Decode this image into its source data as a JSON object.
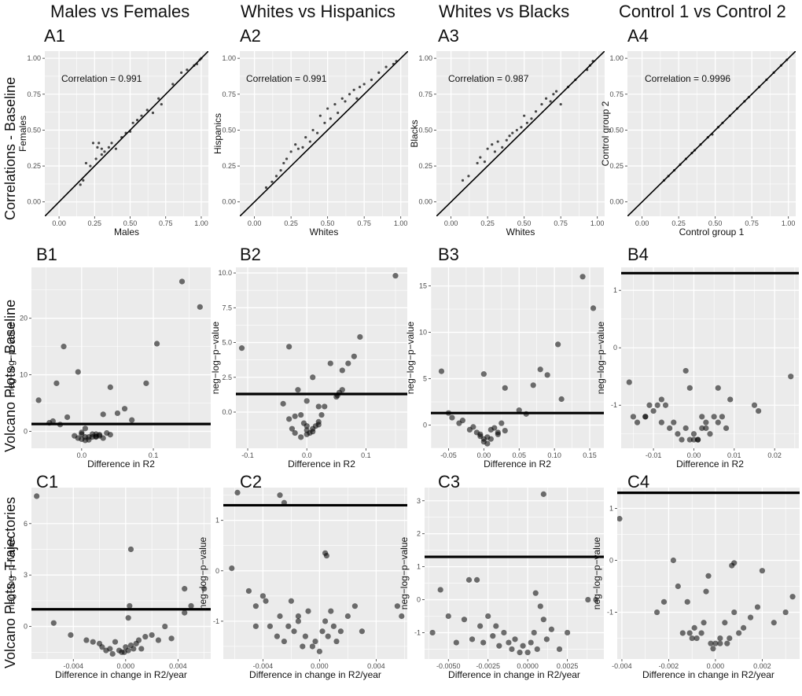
{
  "column_titles": [
    "Males vs Females",
    "Whites vs Hispanics",
    "Whites vs Blacks",
    "Control 1 vs Control 2"
  ],
  "row_titles": [
    "Correlations - Baseline",
    "Volcano Plots - Baseline",
    "Volcano Plots - Trajectories"
  ],
  "panel_labels": {
    "A": [
      "A1",
      "A2",
      "A3",
      "A4"
    ],
    "B": [
      "B1",
      "B2",
      "B3",
      "B4"
    ],
    "C": [
      "C1",
      "C2",
      "C3",
      "C4"
    ]
  },
  "chart_data": [
    {
      "id": "A1",
      "type": "scatter",
      "xlabel": "Males",
      "ylabel": "Females",
      "annotation": "Correlation = 0.991",
      "xlim": [
        -0.1,
        1.05
      ],
      "ylim": [
        -0.1,
        1.05
      ],
      "xticks": [
        0,
        0.25,
        0.5,
        0.75,
        1
      ],
      "xtick_labels": [
        "0.00",
        "0.25",
        "0.50",
        "0.75",
        "1.00"
      ],
      "yticks": [
        0,
        0.25,
        0.5,
        0.75,
        1
      ],
      "ytick_labels": [
        "0.00",
        "0.25",
        "0.50",
        "0.75",
        "1.00"
      ],
      "diagonal": true,
      "x": [
        0.15,
        0.17,
        0.19,
        0.22,
        0.24,
        0.26,
        0.27,
        0.28,
        0.3,
        0.3,
        0.32,
        0.35,
        0.37,
        0.4,
        0.44,
        0.47,
        0.5,
        0.52,
        0.55,
        0.58,
        0.62,
        0.66,
        0.7,
        0.72,
        0.8,
        0.86,
        0.9,
        0.95,
        0.97,
        0.99,
        1.0
      ],
      "y": [
        0.12,
        0.15,
        0.27,
        0.25,
        0.41,
        0.3,
        0.38,
        0.41,
        0.37,
        0.33,
        0.35,
        0.38,
        0.41,
        0.37,
        0.45,
        0.48,
        0.49,
        0.55,
        0.57,
        0.6,
        0.64,
        0.62,
        0.72,
        0.68,
        0.82,
        0.9,
        0.92,
        0.95,
        0.96,
        0.99,
        1.0
      ]
    },
    {
      "id": "A2",
      "type": "scatter",
      "xlabel": "Whites",
      "ylabel": "Hispanics",
      "annotation": "Correlation = 0.991",
      "xlim": [
        -0.1,
        1.05
      ],
      "ylim": [
        -0.1,
        1.05
      ],
      "xticks": [
        0,
        0.25,
        0.5,
        0.75,
        1
      ],
      "xtick_labels": [
        "0.00",
        "0.25",
        "0.50",
        "0.75",
        "1.00"
      ],
      "yticks": [
        0,
        0.25,
        0.5,
        0.75,
        1
      ],
      "ytick_labels": [
        "0.00",
        "0.25",
        "0.50",
        "0.75",
        "1.00"
      ],
      "diagonal": true,
      "x": [
        0.08,
        0.12,
        0.15,
        0.18,
        0.2,
        0.22,
        0.25,
        0.28,
        0.3,
        0.33,
        0.35,
        0.38,
        0.4,
        0.43,
        0.45,
        0.48,
        0.5,
        0.52,
        0.55,
        0.57,
        0.6,
        0.62,
        0.65,
        0.68,
        0.7,
        0.72,
        0.75,
        0.8,
        0.85,
        0.9,
        0.95,
        0.97
      ],
      "y": [
        0.1,
        0.14,
        0.18,
        0.22,
        0.27,
        0.3,
        0.35,
        0.4,
        0.37,
        0.38,
        0.45,
        0.42,
        0.5,
        0.48,
        0.6,
        0.55,
        0.65,
        0.58,
        0.68,
        0.62,
        0.72,
        0.7,
        0.75,
        0.78,
        0.72,
        0.8,
        0.82,
        0.85,
        0.9,
        0.94,
        0.96,
        0.98
      ]
    },
    {
      "id": "A3",
      "type": "scatter",
      "xlabel": "Whites",
      "ylabel": "Blacks",
      "annotation": "Correlation = 0.987",
      "xlim": [
        -0.1,
        1.05
      ],
      "ylim": [
        -0.1,
        1.05
      ],
      "xticks": [
        0,
        0.25,
        0.5,
        0.75,
        1
      ],
      "xtick_labels": [
        "0.00",
        "0.25",
        "0.50",
        "0.75",
        "1.00"
      ],
      "yticks": [
        0,
        0.25,
        0.5,
        0.75,
        1
      ],
      "ytick_labels": [
        "0.00",
        "0.25",
        "0.50",
        "0.75",
        "1.00"
      ],
      "diagonal": true,
      "x": [
        0.08,
        0.12,
        0.18,
        0.2,
        0.23,
        0.25,
        0.28,
        0.3,
        0.32,
        0.35,
        0.38,
        0.4,
        0.42,
        0.45,
        0.48,
        0.5,
        0.52,
        0.55,
        0.58,
        0.62,
        0.65,
        0.68,
        0.7,
        0.72,
        0.75,
        0.8,
        0.85,
        0.93,
        0.95,
        0.97
      ],
      "y": [
        0.15,
        0.18,
        0.27,
        0.31,
        0.28,
        0.37,
        0.4,
        0.35,
        0.42,
        0.38,
        0.43,
        0.46,
        0.48,
        0.5,
        0.52,
        0.6,
        0.55,
        0.58,
        0.63,
        0.68,
        0.72,
        0.7,
        0.75,
        0.77,
        0.68,
        0.8,
        0.85,
        0.92,
        0.95,
        0.98
      ]
    },
    {
      "id": "A4",
      "type": "scatter",
      "xlabel": "Control group 1",
      "ylabel": "Control group 2",
      "annotation": "Correlation = 0.9996",
      "xlim": [
        -0.1,
        1.05
      ],
      "ylim": [
        -0.1,
        1.05
      ],
      "xticks": [
        0,
        0.25,
        0.5,
        0.75,
        1
      ],
      "xtick_labels": [
        "0.00",
        "0.25",
        "0.50",
        "0.75",
        "1.00"
      ],
      "yticks": [
        0,
        0.25,
        0.5,
        0.75,
        1
      ],
      "ytick_labels": [
        "0.00",
        "0.25",
        "0.50",
        "0.75",
        "1.00"
      ],
      "diagonal": true,
      "x": [
        0.15,
        0.18,
        0.22,
        0.26,
        0.3,
        0.34,
        0.36,
        0.4,
        0.45,
        0.48,
        0.52,
        0.55,
        0.6,
        0.65,
        0.7,
        0.73,
        0.8,
        0.85,
        0.9,
        0.95,
        0.99
      ],
      "y": [
        0.15,
        0.18,
        0.22,
        0.26,
        0.3,
        0.34,
        0.36,
        0.4,
        0.45,
        0.47,
        0.52,
        0.55,
        0.6,
        0.65,
        0.7,
        0.73,
        0.8,
        0.85,
        0.9,
        0.95,
        0.99
      ]
    },
    {
      "id": "B1",
      "type": "scatter",
      "xlabel": "Difference in R2",
      "ylabel": "neg−log−p−value",
      "xlim": [
        -0.07,
        0.18
      ],
      "ylim": [
        -3,
        29
      ],
      "xticks": [
        0,
        0.1
      ],
      "xtick_labels": [
        "0.0",
        "0.1"
      ],
      "yticks": [
        0,
        10,
        20
      ],
      "ytick_labels": [
        "0",
        "10",
        "20"
      ],
      "hline": 1.3,
      "x": [
        -0.06,
        -0.045,
        -0.04,
        -0.035,
        -0.025,
        -0.02,
        -0.01,
        -0.005,
        0.0,
        0.005,
        0.01,
        0.015,
        0.02,
        0.025,
        0.03,
        0.035,
        0.04,
        -0.005,
        0.0,
        0.005,
        0.01,
        0.02,
        0.005,
        0.03,
        0.04,
        0.05,
        0.06,
        0.07,
        0.09,
        0.105,
        0.14,
        0.165,
        -0.03,
        0.0,
        0.015,
        0.02,
        0.025
      ],
      "y": [
        5.5,
        1.5,
        1.8,
        8.5,
        15.0,
        2.5,
        -0.8,
        10.5,
        -0.5,
        -1.0,
        -1.5,
        -1.0,
        -0.5,
        -0.8,
        -1.2,
        -0.3,
        -0.6,
        -1.2,
        -1.4,
        -1.6,
        -1.0,
        -0.9,
        0.5,
        3.0,
        7.8,
        3.2,
        4.0,
        2.0,
        8.5,
        15.5,
        26.5,
        22.0,
        1.2,
        -0.2,
        -0.5,
        -1.0,
        -0.6
      ]
    },
    {
      "id": "B2",
      "type": "scatter",
      "xlabel": "Difference in R2",
      "ylabel": "neg−log−p−value",
      "xlim": [
        -0.12,
        0.17
      ],
      "ylim": [
        -2.6,
        10.4
      ],
      "xticks": [
        -0.1,
        0,
        0.1
      ],
      "xtick_labels": [
        "-0.1",
        "0.0",
        "0.1"
      ],
      "yticks": [
        0,
        2.5,
        5,
        7.5,
        10
      ],
      "ytick_labels": [
        "0.0",
        "2.5",
        "5.0",
        "7.5",
        "10.0"
      ],
      "hline": 1.3,
      "x": [
        -0.11,
        -0.03,
        -0.04,
        -0.03,
        -0.02,
        -0.015,
        -0.01,
        -0.005,
        0.0,
        0.0,
        0.005,
        0.01,
        0.015,
        0.02,
        0.025,
        0.03,
        -0.025,
        -0.02,
        -0.01,
        0.0,
        0.01,
        0.02,
        0.0,
        0.04,
        0.05,
        0.052,
        0.055,
        0.06,
        0.06,
        0.07,
        0.08,
        0.09,
        0.15,
        0.01,
        0.02
      ],
      "y": [
        4.6,
        4.7,
        0.6,
        -0.5,
        -0.3,
        1.6,
        -0.2,
        -0.8,
        -1.0,
        -1.3,
        -1.5,
        -1.4,
        -1.0,
        -0.7,
        -0.2,
        0.4,
        -1.2,
        -1.5,
        -1.8,
        -1.6,
        -1.2,
        -0.9,
        0.8,
        3.5,
        1.1,
        1.2,
        1.4,
        3.0,
        1.6,
        3.5,
        4.0,
        5.4,
        9.8,
        2.5,
        0.4
      ]
    },
    {
      "id": "B3",
      "type": "scatter",
      "xlabel": "Difference in R2",
      "ylabel": "neg−log−p−value",
      "xlim": [
        -0.075,
        0.17
      ],
      "ylim": [
        -2.5,
        17
      ],
      "xticks": [
        -0.05,
        0,
        0.05,
        0.1,
        0.15
      ],
      "xtick_labels": [
        "-0.05",
        "0.00",
        "0.05",
        "0.10",
        "0.15"
      ],
      "yticks": [
        0,
        5,
        10,
        15
      ],
      "ytick_labels": [
        "0",
        "5",
        "10",
        "15"
      ],
      "hline": 1.3,
      "x": [
        -0.06,
        -0.05,
        -0.03,
        -0.02,
        -0.015,
        -0.01,
        -0.005,
        0.0,
        0.005,
        0.01,
        0.015,
        0.02,
        0.025,
        0.03,
        -0.005,
        0.0,
        0.005,
        0.01,
        0.02,
        0.0,
        0.03,
        0.05,
        0.06,
        0.07,
        0.08,
        0.09,
        0.105,
        0.11,
        0.14,
        0.155,
        -0.045,
        -0.035
      ],
      "y": [
        5.8,
        1.3,
        0.5,
        -0.5,
        -0.2,
        -0.8,
        -1.2,
        -1.5,
        -1.3,
        -0.5,
        -0.3,
        -0.8,
        0.2,
        -0.6,
        -1.0,
        -1.8,
        -2.0,
        -1.5,
        -1.0,
        5.5,
        4.0,
        1.6,
        1.2,
        4.3,
        6.0,
        5.4,
        8.7,
        2.8,
        16.0,
        12.6,
        0.8,
        0.2
      ]
    },
    {
      "id": "B4",
      "type": "scatter",
      "xlabel": "Difference in R2",
      "ylabel": "neg−log−p−value",
      "xlim": [
        -0.018,
        0.026
      ],
      "ylim": [
        -1.75,
        1.4
      ],
      "xticks": [
        -0.01,
        0,
        0.01,
        0.02
      ],
      "xtick_labels": [
        "-0.01",
        "0.00",
        "0.01",
        "0.02"
      ],
      "yticks": [
        -1,
        0,
        1
      ],
      "ytick_labels": [
        "-1",
        "0",
        "1"
      ],
      "hline": 1.3,
      "x": [
        -0.016,
        -0.015,
        -0.014,
        -0.012,
        -0.011,
        -0.01,
        -0.009,
        -0.008,
        -0.007,
        -0.006,
        -0.005,
        -0.004,
        -0.003,
        -0.002,
        -0.001,
        0.0,
        0.001,
        0.002,
        0.003,
        0.004,
        0.005,
        0.006,
        0.007,
        0.008,
        0.009,
        -0.002,
        -0.001,
        0.0,
        0.001,
        0.002,
        0.003,
        0.015,
        0.016,
        0.024,
        -0.008,
        -0.012,
        0.006
      ],
      "y": [
        -0.6,
        -1.2,
        -1.3,
        -1.2,
        -1.0,
        -1.1,
        -1.0,
        -1.3,
        -1.0,
        -1.4,
        -1.3,
        -1.5,
        -1.6,
        -1.4,
        -1.6,
        -1.5,
        -1.6,
        -1.4,
        -1.3,
        -1.5,
        -1.2,
        -1.3,
        -1.2,
        -1.4,
        -0.9,
        -0.4,
        -0.7,
        -1.6,
        -1.6,
        -1.2,
        -1.4,
        -1.0,
        -1.1,
        -0.5,
        -0.9,
        -1.2,
        -0.7
      ]
    },
    {
      "id": "C1",
      "type": "scatter",
      "xlabel": "Difference in change in R2/year",
      "ylabel": "neg−log−p−value",
      "xlim": [
        -0.0072,
        0.0065
      ],
      "ylim": [
        -1.9,
        8.1
      ],
      "xticks": [
        -0.004,
        0,
        0.004
      ],
      "xtick_labels": [
        "-0.004",
        "0.000",
        "0.004"
      ],
      "yticks": [
        0,
        3,
        6
      ],
      "ytick_labels": [
        "0",
        "3",
        "6"
      ],
      "hline": 1.0,
      "x": [
        -0.0068,
        -0.0055,
        -0.0042,
        -0.003,
        -0.0025,
        -0.002,
        -0.0018,
        -0.0015,
        -0.0012,
        -0.001,
        -0.0008,
        -0.0005,
        -0.0003,
        0.0,
        0.0002,
        0.0004,
        0.0006,
        0.0008,
        0.001,
        0.0012,
        0.0015,
        0.002,
        0.0025,
        0.003,
        0.0035,
        0.0045,
        0.0045,
        0.005,
        0.006,
        0.0003,
        0.0004,
        0.0002,
        -0.0001
      ],
      "y": [
        7.6,
        0.2,
        -0.5,
        -0.8,
        -0.9,
        -1.0,
        -1.2,
        -1.4,
        -1.3,
        -1.6,
        -0.9,
        -1.4,
        -1.5,
        -1.2,
        -1.4,
        -1.1,
        -1.3,
        -1.0,
        -0.8,
        -1.3,
        -0.6,
        -0.5,
        -0.8,
        0.0,
        -0.7,
        2.2,
        0.8,
        1.2,
        2.2,
        1.2,
        4.5,
        0.5,
        -1.5
      ]
    },
    {
      "id": "C2",
      "type": "scatter",
      "xlabel": "Difference in change in R2/year",
      "ylabel": "neg−log−p−value",
      "xlim": [
        -0.0068,
        0.0062
      ],
      "ylim": [
        -1.75,
        1.65
      ],
      "xticks": [
        -0.004,
        0,
        0.004
      ],
      "xtick_labels": [
        "-0.004",
        "0.000",
        "0.004"
      ],
      "yticks": [
        -1,
        0,
        1
      ],
      "ytick_labels": [
        "-1",
        "0",
        "1"
      ],
      "hline": 1.3,
      "x": [
        -0.0062,
        -0.0058,
        -0.005,
        -0.0045,
        -0.004,
        -0.0038,
        -0.0035,
        -0.003,
        -0.0028,
        -0.0025,
        -0.0022,
        -0.002,
        -0.0018,
        -0.0015,
        -0.0012,
        -0.001,
        -0.0008,
        -0.0005,
        -0.0003,
        0.0,
        0.0002,
        0.0004,
        0.0006,
        0.0008,
        0.001,
        0.0012,
        0.0015,
        0.002,
        0.0025,
        0.003,
        0.0055,
        0.0058,
        -0.0028,
        -0.0025,
        0.0004,
        0.0005,
        -0.0045,
        -0.0015
      ],
      "y": [
        0.05,
        1.55,
        -0.4,
        -1.1,
        -0.5,
        -0.6,
        -1.1,
        -1.3,
        -0.9,
        -1.4,
        -1.1,
        -0.6,
        -1.2,
        -0.9,
        -1.5,
        -1.3,
        -0.8,
        -1.5,
        -1.4,
        -1.6,
        -1.2,
        -1.0,
        -1.3,
        -0.8,
        -1.1,
        -1.4,
        -1.2,
        -0.9,
        -0.7,
        -1.2,
        -0.7,
        -0.9,
        1.5,
        1.35,
        0.35,
        0.3,
        -0.7,
        -1.0
      ]
    },
    {
      "id": "C3",
      "type": "scatter",
      "xlabel": "Difference in change in R2/year",
      "ylabel": "neg−log−p−value",
      "xlim": [
        -0.0065,
        0.0048
      ],
      "ylim": [
        -1.8,
        3.4
      ],
      "xticks": [
        -0.005,
        -0.0025,
        0,
        0.0025
      ],
      "xtick_labels": [
        "-0.0050",
        "-0.0025",
        "0.0000",
        "0.0025"
      ],
      "yticks": [
        -1,
        0,
        1,
        2,
        3
      ],
      "ytick_labels": [
        "-1",
        "0",
        "1",
        "2",
        "3"
      ],
      "hline": 1.3,
      "x": [
        -0.006,
        -0.0055,
        -0.005,
        -0.0045,
        -0.004,
        -0.0035,
        -0.0032,
        -0.003,
        -0.0028,
        -0.0025,
        -0.0022,
        -0.002,
        -0.0018,
        -0.0015,
        -0.0012,
        -0.001,
        -0.0008,
        -0.0005,
        -0.0003,
        0.0,
        0.0002,
        0.0004,
        0.0006,
        0.0008,
        0.001,
        0.0012,
        0.0015,
        0.002,
        0.0025,
        0.0038,
        0.0043,
        -0.0037,
        0.001,
        0.0005
      ],
      "y": [
        -1.0,
        0.3,
        -0.5,
        -1.3,
        -0.6,
        -1.2,
        0.6,
        -0.8,
        -1.3,
        -0.5,
        -1.1,
        -0.8,
        -1.4,
        -1.0,
        -1.3,
        -1.5,
        -1.2,
        -1.6,
        -1.4,
        -1.6,
        -1.3,
        -1.0,
        -1.5,
        -0.2,
        -0.6,
        -1.2,
        -0.9,
        -1.5,
        -1.0,
        0.0,
        0.0,
        0.6,
        3.2,
        0.2
      ]
    },
    {
      "id": "C4",
      "type": "scatter",
      "xlabel": "Difference in change in R2/year",
      "ylabel": "neg−log−p−value",
      "xlim": [
        -0.0042,
        0.0036
      ],
      "ylim": [
        -1.9,
        1.4
      ],
      "xticks": [
        -0.004,
        -0.002,
        0,
        0.002
      ],
      "xtick_labels": [
        "-0.004",
        "-0.002",
        "0.000",
        "0.002"
      ],
      "yticks": [
        -1,
        0,
        1
      ],
      "ytick_labels": [
        "-1",
        "0",
        "1"
      ],
      "hline": 1.3,
      "x": [
        -0.0041,
        -0.0025,
        -0.0022,
        -0.0018,
        -0.0016,
        -0.0012,
        -0.0011,
        -0.001,
        -0.0009,
        -0.0008,
        -0.0006,
        -0.0005,
        -0.0004,
        -0.0003,
        -0.0002,
        0.0,
        0.0002,
        0.0004,
        0.0005,
        0.0006,
        0.0008,
        0.001,
        0.0012,
        0.0015,
        0.0018,
        0.002,
        0.0025,
        0.003,
        0.0033,
        -0.0014,
        0.0007,
        0.0008,
        -0.0001,
        0.0002
      ],
      "y": [
        0.8,
        -1.0,
        -0.8,
        0.0,
        -0.5,
        -0.8,
        -1.4,
        -1.5,
        -1.3,
        -1.5,
        -1.4,
        -1.2,
        -0.6,
        -0.3,
        -1.6,
        -1.6,
        -1.5,
        -1.2,
        -1.6,
        -1.5,
        -1.0,
        -1.4,
        -1.3,
        -1.1,
        -0.9,
        -0.2,
        -1.2,
        -1.0,
        -0.7,
        -1.4,
        -0.1,
        -0.05,
        -1.7,
        -1.6
      ]
    }
  ]
}
